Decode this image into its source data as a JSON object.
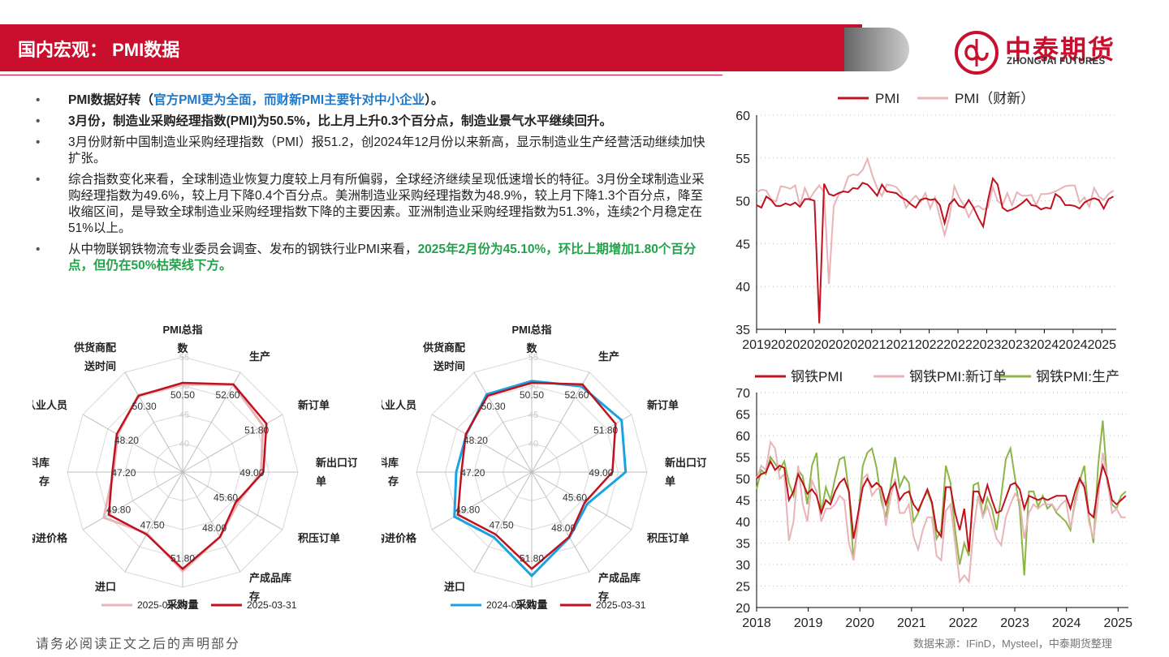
{
  "header": {
    "title": "国内宏观： PMI数据"
  },
  "logo": {
    "name_cn": "中泰期货",
    "name_en": "ZHONGTAI FUTURES"
  },
  "bullets": [
    {
      "parts": [
        {
          "t": "PMI数据好转（",
          "s": "b"
        },
        {
          "t": "官方PMI更为全面，而财新PMI主要针对中小企业",
          "s": "blue"
        },
        {
          "t": "）。",
          "s": "b"
        }
      ]
    },
    {
      "parts": [
        {
          "t": "3月份，制造业采购经理指数(PMI)为50.5%，比上月上升0.3个百分点，制造业景气水平继续回升。",
          "s": "b"
        }
      ]
    },
    {
      "parts": [
        {
          "t": "3月份财新中国制造业采购经理指数（PMI）报51.2，创2024年12月份以来新高，显示制造业生产经营活动继续加快扩张。",
          "s": ""
        }
      ]
    },
    {
      "parts": [
        {
          "t": "综合指数变化来看，全球制造业恢复力度较上月有所偏弱，全球经济继续呈现低速增长的特征。3月份全球制造业采购经理指数为49.6%，较上月下降0.4个百分点。美洲制造业采购经理指数为48.9%，较上月下降1.3个百分点，降至收缩区间，是导致全球制造业采购经理指数下降的主要因素。亚洲制造业采购经理指数为51.3%，连续2个月稳定在51%以上。",
          "s": ""
        }
      ]
    },
    {
      "parts": [
        {
          "t": "从中物联钢铁物流专业委员会调查、发布的钢铁行业PMI来看，",
          "s": ""
        },
        {
          "t": "2025年2月份为45.10%，环比上期增加1.80个百分点，但仍在50%枯荣线下方。",
          "s": "green"
        }
      ]
    }
  ],
  "footer": {
    "left": "请务必阅读正文之后的声明部分",
    "right": "数据来源：IFinD，Mysteel，中泰期货整理"
  },
  "chart_data": [
    {
      "type": "radar",
      "axes": [
        "PMI总指数",
        "生产",
        "新订单",
        "新出口订单",
        "积压订单",
        "产成品库存",
        "采购量",
        "进口",
        "购进价格",
        "原材料库存",
        "从业人员",
        "供货商配送时间"
      ],
      "axis_label_lines": [
        [
          "PMI总指",
          "数"
        ],
        [
          "生产"
        ],
        [
          "新订单"
        ],
        [
          "新出口订",
          "单"
        ],
        [
          "积压订单"
        ],
        [
          "产成品库",
          "存"
        ],
        [
          "采购量"
        ],
        [
          "进口"
        ],
        [
          "购进价格"
        ],
        [
          "原材料库",
          "存"
        ],
        [
          "从业人员"
        ],
        [
          "供货商配",
          "送时间"
        ]
      ],
      "rlim": [
        35,
        55
      ],
      "rings": [
        40,
        45,
        50,
        55
      ],
      "series": [
        {
          "name": "2025-02-28",
          "color": "#e8b4b8",
          "values": [
            50.2,
            52.5,
            51.1,
            48.6,
            46.0,
            48.0,
            52.2,
            47.3,
            50.8,
            47.0,
            48.0,
            50.4
          ]
        },
        {
          "name": "2025-03-31",
          "color": "#c0111f",
          "values": [
            50.5,
            52.6,
            51.8,
            49.0,
            45.6,
            48.0,
            51.8,
            47.5,
            49.8,
            47.2,
            48.2,
            50.3
          ]
        }
      ],
      "labels": [
        "50.50",
        "52.60",
        "51.80",
        "49.00",
        "45.60",
        "48.00",
        "51.80",
        "47.50",
        "49.80",
        "47.20",
        "48.20",
        "50.30"
      ]
    },
    {
      "type": "radar",
      "axes": [
        "PMI总指数",
        "生产",
        "新订单",
        "新出口订单",
        "积压订单",
        "产成品库存",
        "采购量",
        "进口",
        "购进价格",
        "原材料库存",
        "从业人员",
        "供货商配送时间"
      ],
      "axis_label_lines": [
        [
          "PMI总指",
          "数"
        ],
        [
          "生产"
        ],
        [
          "新订单"
        ],
        [
          "新出口订",
          "单"
        ],
        [
          "积压订单"
        ],
        [
          "产成品库",
          "存"
        ],
        [
          "采购量"
        ],
        [
          "进口"
        ],
        [
          "购进价格"
        ],
        [
          "原材料库",
          "存"
        ],
        [
          "从业人员"
        ],
        [
          "供货商配",
          "送时间"
        ]
      ],
      "rlim": [
        35,
        55
      ],
      "rings": [
        40,
        45,
        50,
        55
      ],
      "series": [
        {
          "name": "2024-03-31",
          "color": "#1aa3e0",
          "values": [
            50.8,
            52.2,
            53.0,
            51.3,
            46.1,
            48.1,
            53.0,
            48.1,
            50.5,
            48.1,
            48.1,
            50.6
          ]
        },
        {
          "name": "2025-03-31",
          "color": "#c0111f",
          "values": [
            50.5,
            52.6,
            51.8,
            49.0,
            45.6,
            48.0,
            51.8,
            47.5,
            49.8,
            47.2,
            48.2,
            50.3
          ]
        }
      ],
      "labels": [
        "50.50",
        "52.60",
        "51.80",
        "49.00",
        "45.60",
        "48.00",
        "51.80",
        "47.50",
        "49.80",
        "47.20",
        "48.20",
        "50.30"
      ]
    },
    {
      "type": "line",
      "ylim": [
        35,
        60
      ],
      "yticks": [
        35,
        40,
        45,
        50,
        55,
        60
      ],
      "x_start": 2019.0,
      "x_end": 2025.25,
      "xtick_labels": [
        "2019",
        "2020",
        "2020",
        "2020",
        "2021",
        "2021",
        "2022",
        "2022",
        "2023",
        "2023",
        "2024",
        "2024",
        "2025"
      ],
      "xtick_positions": [
        2019.0,
        2019.5,
        2020.0,
        2020.5,
        2021.0,
        2021.5,
        2022.0,
        2022.5,
        2023.0,
        2023.5,
        2024.0,
        2024.5,
        2025.0
      ],
      "series": [
        {
          "name": "PMI",
          "color": "#c0111f",
          "values": [
            49.5,
            49.2,
            50.5,
            50.1,
            49.4,
            49.4,
            49.7,
            49.5,
            49.8,
            49.3,
            50.2,
            50.2,
            50.0,
            35.7,
            52.0,
            50.8,
            50.6,
            50.9,
            51.1,
            51.0,
            51.5,
            51.4,
            52.1,
            51.9,
            51.3,
            50.6,
            51.9,
            51.1,
            51.0,
            50.9,
            50.4,
            50.1,
            49.6,
            49.2,
            50.1,
            50.3,
            50.1,
            50.2,
            49.5,
            47.4,
            49.6,
            50.2,
            49.4,
            49.2,
            50.1,
            49.2,
            48.0,
            47.0,
            50.1,
            52.6,
            51.9,
            49.2,
            48.8,
            49.0,
            49.3,
            49.7,
            50.2,
            49.5,
            49.4,
            49.0,
            49.2,
            49.1,
            50.8,
            50.4,
            49.5,
            49.5,
            49.4,
            49.1,
            49.8,
            50.1,
            50.3,
            50.1,
            49.1,
            50.2,
            50.5
          ]
        },
        {
          "name": "PMI（财新）",
          "color": "#e8b4b8",
          "values": [
            51.0,
            51.3,
            51.2,
            50.2,
            49.9,
            51.7,
            51.6,
            51.4,
            51.8,
            49.4,
            51.5,
            50.2,
            51.1,
            51.8,
            51.0,
            40.3,
            49.4,
            50.7,
            51.2,
            52.8,
            53.1,
            53.0,
            53.6,
            54.9,
            53.0,
            51.5,
            50.6,
            51.9,
            51.8,
            51.6,
            50.9,
            49.2,
            50.0,
            50.6,
            49.9,
            50.9,
            49.1,
            50.4,
            48.1,
            46.0,
            48.1,
            51.7,
            50.4,
            49.5,
            48.1,
            49.2,
            49.4,
            49.0,
            49.2,
            51.6,
            50.0,
            49.5,
            50.9,
            49.5,
            51.0,
            50.6,
            50.6,
            50.7,
            49.5,
            50.8,
            50.8,
            50.9,
            51.1,
            51.4,
            51.7,
            51.8,
            51.8,
            49.8,
            50.4,
            49.3,
            51.5,
            50.5,
            50.1,
            50.8,
            51.2
          ]
        }
      ]
    },
    {
      "type": "line",
      "ylim": [
        20,
        70
      ],
      "yticks": [
        20,
        25,
        30,
        35,
        40,
        45,
        50,
        55,
        60,
        65,
        70
      ],
      "x_start": 2018.0,
      "x_end": 2025.2,
      "xtick_labels": [
        "2018",
        "2019",
        "2020",
        "2021",
        "2022",
        "2023",
        "2024",
        "2025"
      ],
      "xtick_positions": [
        2018,
        2019,
        2020,
        2021,
        2022,
        2023,
        2024,
        2025
      ],
      "series": [
        {
          "name": "钢铁PMI",
          "color": "#c0111f",
          "values": [
            50.0,
            51.0,
            51.5,
            54.0,
            52.0,
            53.0,
            52.5,
            45.0,
            47.0,
            51.0,
            49.0,
            46.5,
            47.5,
            46.0,
            42.0,
            45.0,
            44.0,
            47.0,
            49.0,
            50.0,
            47.0,
            36.0,
            42.0,
            48.0,
            50.0,
            48.0,
            49.0,
            48.0,
            44.0,
            47.5,
            49.0,
            45.0,
            46.5,
            47.0,
            44.0,
            42.5,
            45.0,
            47.5,
            44.5,
            38.0,
            36.5,
            48.0,
            48.0,
            42.0,
            38.0,
            43.0,
            33.0,
            47.0,
            47.0,
            44.5,
            48.5,
            45.0,
            42.0,
            42.5,
            45.5,
            48.5,
            49.0,
            47.5,
            43.0,
            46.0,
            45.5,
            45.0,
            45.5,
            45.0,
            45.5,
            46.0,
            46.0,
            46.0,
            43.0,
            47.0,
            50.0,
            48.0,
            42.0,
            41.0,
            48.0,
            53.0,
            50.0,
            45.0,
            44.0,
            45.0,
            46.0
          ]
        },
        {
          "name": "钢铁PMI:新订单",
          "color": "#e8b4b8",
          "values": [
            50.0,
            53.0,
            52.0,
            58.5,
            57.0,
            50.0,
            51.0,
            35.5,
            40.0,
            53.0,
            44.0,
            40.0,
            49.5,
            47.0,
            40.0,
            43.0,
            43.0,
            44.0,
            46.0,
            45.0,
            35.0,
            31.0,
            40.0,
            50.0,
            51.0,
            46.0,
            47.5,
            48.0,
            39.0,
            45.5,
            50.0,
            42.0,
            42.0,
            44.0,
            36.5,
            33.5,
            38.0,
            41.0,
            41.0,
            32.0,
            31.0,
            42.5,
            44.0,
            35.0,
            26.0,
            27.5,
            26.0,
            38.0,
            46.0,
            41.0,
            43.5,
            40.0,
            36.0,
            34.5,
            41.0,
            44.0,
            46.5,
            45.0,
            36.0,
            42.0,
            44.0,
            43.0,
            44.0,
            44.0,
            44.0,
            42.5,
            44.0,
            45.0,
            38.5,
            44.0,
            49.0,
            49.0,
            40.0,
            36.0,
            45.0,
            56.0,
            50.0,
            42.0,
            43.0,
            41.0,
            41.0
          ]
        },
        {
          "name": "钢铁PMI:生产",
          "color": "#8db547",
          "values": [
            47.5,
            52.0,
            51.0,
            55.0,
            53.5,
            52.0,
            54.0,
            49.0,
            46.0,
            52.0,
            50.5,
            44.0,
            53.0,
            56.0,
            42.0,
            48.0,
            45.0,
            50.0,
            54.5,
            55.0,
            47.0,
            31.0,
            41.0,
            53.0,
            56.0,
            57.0,
            52.5,
            45.0,
            41.0,
            48.0,
            55.0,
            48.0,
            50.5,
            49.0,
            40.0,
            42.0,
            45.0,
            47.0,
            44.0,
            36.0,
            38.0,
            53.0,
            49.0,
            38.0,
            30.0,
            35.0,
            32.0,
            48.5,
            49.0,
            41.0,
            45.5,
            43.0,
            38.0,
            46.0,
            54.5,
            57.0,
            50.0,
            43.0,
            27.5,
            47.0,
            47.0,
            43.5,
            46.0,
            43.0,
            44.0,
            42.0,
            41.0,
            40.0,
            38.0,
            45.0,
            49.5,
            53.0,
            41.0,
            35.0,
            53.0,
            63.5,
            49.0,
            44.0,
            43.0,
            46.0,
            47.0
          ]
        }
      ]
    }
  ]
}
